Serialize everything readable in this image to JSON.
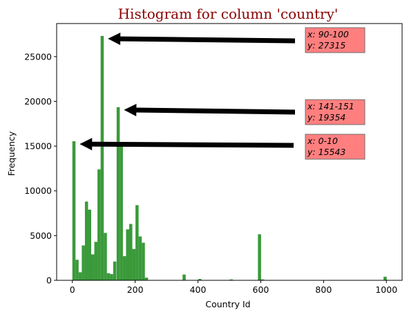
{
  "chart_data": {
    "type": "bar",
    "title": "Histogram for column 'country'",
    "xlabel": "Country Id",
    "ylabel": "Frequency",
    "xlim": [
      -50,
      1050
    ],
    "ylim": [
      0,
      28700
    ],
    "x_ticks": [
      0,
      200,
      400,
      600,
      800,
      1000
    ],
    "y_ticks": [
      0,
      5000,
      10000,
      15000,
      20000,
      25000
    ],
    "bar_color": "#3a9a3a",
    "bin_width": 10,
    "bins": [
      {
        "x": 0,
        "y": 15543
      },
      {
        "x": 10,
        "y": 2300
      },
      {
        "x": 20,
        "y": 900
      },
      {
        "x": 30,
        "y": 3900
      },
      {
        "x": 40,
        "y": 8800
      },
      {
        "x": 50,
        "y": 7900
      },
      {
        "x": 60,
        "y": 2900
      },
      {
        "x": 70,
        "y": 4300
      },
      {
        "x": 80,
        "y": 12400
      },
      {
        "x": 90,
        "y": 27315
      },
      {
        "x": 100,
        "y": 5300
      },
      {
        "x": 110,
        "y": 800
      },
      {
        "x": 120,
        "y": 700
      },
      {
        "x": 130,
        "y": 2100
      },
      {
        "x": 141,
        "y": 19354
      },
      {
        "x": 151,
        "y": 15000
      },
      {
        "x": 161,
        "y": 2700
      },
      {
        "x": 171,
        "y": 5700
      },
      {
        "x": 181,
        "y": 6300
      },
      {
        "x": 191,
        "y": 3500
      },
      {
        "x": 201,
        "y": 8400
      },
      {
        "x": 211,
        "y": 4900
      },
      {
        "x": 221,
        "y": 4200
      },
      {
        "x": 231,
        "y": 300
      },
      {
        "x": 351,
        "y": 650
      },
      {
        "x": 401,
        "y": 150
      },
      {
        "x": 501,
        "y": 100
      },
      {
        "x": 591,
        "y": 5150
      },
      {
        "x": 601,
        "y": 100
      },
      {
        "x": 991,
        "y": 400
      }
    ],
    "annotations": [
      {
        "line1": "x: 90-100",
        "line2": "y: 27315",
        "point_x": 100,
        "point_y": 27315,
        "box_color": "#ff7f7f"
      },
      {
        "line1": "x: 141-151",
        "line2": "y: 19354",
        "point_x": 151,
        "point_y": 19354,
        "box_color": "#ff7f7f"
      },
      {
        "line1": "x: 0-10",
        "line2": "y: 15543",
        "point_x": 10,
        "point_y": 15543,
        "box_color": "#ff7f7f"
      }
    ]
  }
}
